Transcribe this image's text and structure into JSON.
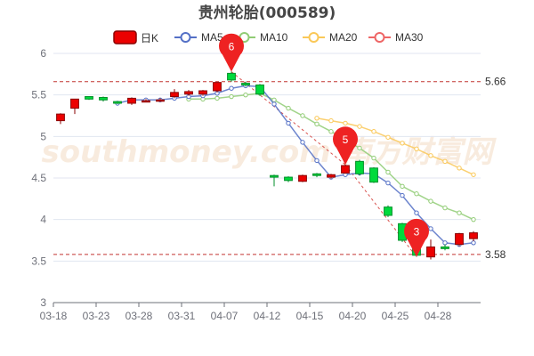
{
  "chart_data": {
    "type": "candlestick",
    "title": "贵州轮胎(000589)",
    "ylim": [
      3,
      6
    ],
    "yticks": [
      3,
      3.5,
      4,
      4.5,
      5,
      5.5,
      6
    ],
    "xticks": [
      "03-18",
      "03-23",
      "03-28",
      "03-31",
      "04-07",
      "04-12",
      "04-15",
      "04-20",
      "04-25",
      "04-28"
    ],
    "grid": true,
    "legend_position": "top",
    "legend": [
      {
        "key": "k",
        "label": "日K",
        "color": "#ec0000",
        "shape": "rect"
      },
      {
        "key": "ma5",
        "label": "MA5",
        "color": "#5470c6",
        "shape": "circle"
      },
      {
        "key": "ma10",
        "label": "MA10",
        "color": "#91cc75",
        "shape": "circle"
      },
      {
        "key": "ma20",
        "label": "MA20",
        "color": "#fac858",
        "shape": "circle"
      },
      {
        "key": "ma30",
        "label": "MA30",
        "color": "#ee6666",
        "shape": "circle"
      }
    ],
    "up_color": "#ec0000",
    "down_color": "#00da3c",
    "watermark": "southmoney.com 南方财富网",
    "candles": [
      {
        "x": 0,
        "open": 5.19,
        "close": 5.27,
        "low": 5.15,
        "high": 5.28
      },
      {
        "x": 1,
        "open": 5.34,
        "close": 5.45,
        "low": 5.27,
        "high": 5.45
      },
      {
        "x": 2,
        "open": 5.48,
        "close": 5.45,
        "low": 5.44,
        "high": 5.48
      },
      {
        "x": 3,
        "open": 5.47,
        "close": 5.44,
        "low": 5.42,
        "high": 5.48
      },
      {
        "x": 4,
        "open": 5.42,
        "close": 5.4,
        "low": 5.39,
        "high": 5.42
      },
      {
        "x": 5,
        "open": 5.4,
        "close": 5.46,
        "low": 5.38,
        "high": 5.47
      },
      {
        "x": 6,
        "open": 5.43,
        "close": 5.43,
        "low": 5.42,
        "high": 5.45
      },
      {
        "x": 7,
        "open": 5.44,
        "close": 5.44,
        "low": 5.42,
        "high": 5.46
      },
      {
        "x": 8,
        "open": 5.48,
        "close": 5.53,
        "low": 5.46,
        "high": 5.57
      },
      {
        "x": 9,
        "open": 5.51,
        "close": 5.54,
        "low": 5.49,
        "high": 5.56
      },
      {
        "x": 10,
        "open": 5.51,
        "close": 5.55,
        "low": 5.49,
        "high": 5.56
      },
      {
        "x": 11,
        "open": 5.55,
        "close": 5.65,
        "low": 5.53,
        "high": 5.65
      },
      {
        "x": 12,
        "open": 5.76,
        "close": 5.68,
        "low": 5.66,
        "high": 5.78
      },
      {
        "x": 13,
        "open": 5.64,
        "close": 5.62,
        "low": 5.6,
        "high": 5.66
      },
      {
        "x": 14,
        "open": 5.62,
        "close": 5.51,
        "low": 5.49,
        "high": 5.63
      },
      {
        "x": 15,
        "open": 4.53,
        "close": 4.51,
        "low": 4.4,
        "high": 4.54
      },
      {
        "x": 16,
        "open": 4.51,
        "close": 4.47,
        "low": 4.45,
        "high": 4.52
      },
      {
        "x": 17,
        "open": 4.46,
        "close": 4.53,
        "low": 4.45,
        "high": 4.54
      },
      {
        "x": 18,
        "open": 4.55,
        "close": 4.53,
        "low": 4.51,
        "high": 4.56
      },
      {
        "x": 19,
        "open": 4.51,
        "close": 4.54,
        "low": 4.49,
        "high": 4.55
      },
      {
        "x": 20,
        "open": 4.56,
        "close": 4.65,
        "low": 4.55,
        "high": 4.66
      },
      {
        "x": 21,
        "open": 4.7,
        "close": 4.55,
        "low": 4.53,
        "high": 4.72
      },
      {
        "x": 22,
        "open": 4.62,
        "close": 4.45,
        "low": 4.44,
        "high": 4.63
      },
      {
        "x": 23,
        "open": 4.15,
        "close": 4.05,
        "low": 4.03,
        "high": 4.17
      },
      {
        "x": 24,
        "open": 3.95,
        "close": 3.75,
        "low": 3.73,
        "high": 3.96
      },
      {
        "x": 25,
        "open": 3.75,
        "close": 3.57,
        "low": 3.55,
        "high": 3.84
      },
      {
        "x": 26,
        "open": 3.55,
        "close": 3.67,
        "low": 3.52,
        "high": 3.76
      },
      {
        "x": 27,
        "open": 3.67,
        "close": 3.65,
        "low": 3.63,
        "high": 3.7
      },
      {
        "x": 28,
        "open": 3.7,
        "close": 3.83,
        "low": 3.68,
        "high": 3.84
      },
      {
        "x": 29,
        "open": 3.77,
        "close": 3.84,
        "low": 3.74,
        "high": 3.86
      }
    ],
    "ma5": [
      null,
      null,
      null,
      null,
      5.4,
      5.44,
      5.44,
      5.44,
      5.46,
      5.48,
      5.49,
      5.52,
      5.58,
      5.61,
      5.6,
      5.39,
      5.16,
      4.93,
      4.71,
      4.51,
      4.54,
      4.56,
      4.55,
      4.44,
      4.29,
      4.08,
      3.89,
      3.72,
      3.7,
      3.72
    ],
    "ma10": [
      null,
      null,
      null,
      null,
      null,
      null,
      null,
      null,
      null,
      5.45,
      5.45,
      5.46,
      5.48,
      5.5,
      5.52,
      5.44,
      5.34,
      5.25,
      5.15,
      5.06,
      4.96,
      4.86,
      4.74,
      4.57,
      4.4,
      4.31,
      4.22,
      4.14,
      4.08,
      4.0
    ],
    "ma20": [
      null,
      null,
      null,
      null,
      null,
      null,
      null,
      null,
      null,
      null,
      null,
      null,
      null,
      null,
      null,
      null,
      null,
      null,
      5.22,
      5.19,
      5.16,
      5.12,
      5.06,
      4.99,
      4.92,
      4.85,
      4.77,
      4.7,
      4.62,
      4.54
    ],
    "ma30": [],
    "ref_lines": [
      {
        "value": 5.66,
        "label": "5.66"
      },
      {
        "value": 3.58,
        "label": "3.58"
      }
    ],
    "markers": [
      {
        "x": 12,
        "value": 5.78,
        "label": "6",
        "color": "#ee2222"
      },
      {
        "x": 20,
        "value": 4.66,
        "label": "5",
        "color": "#ee2222"
      },
      {
        "x": 25,
        "value": 3.55,
        "label": "3",
        "color": "#ee2222"
      }
    ]
  }
}
